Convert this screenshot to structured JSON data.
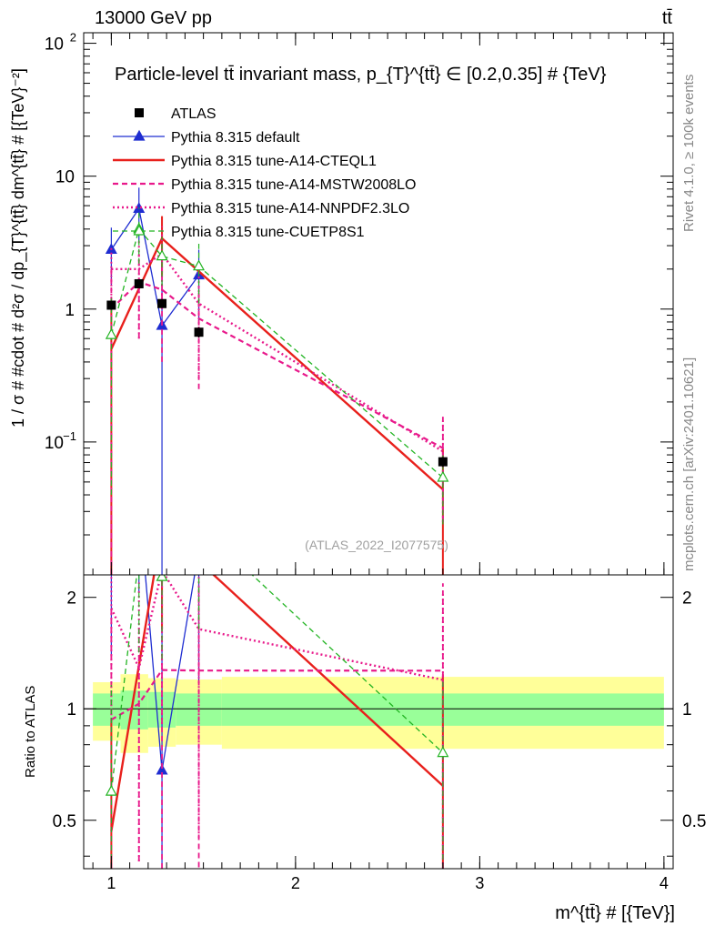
{
  "header": {
    "left": "13000 GeV pp",
    "right": "tt̄",
    "side_rivet": "Rivet 4.1.0, ≥ 100k events",
    "side_mcplots": "mcplots.cern.ch [arXiv:2401.10621]"
  },
  "colors": {
    "atlas": "#000000",
    "default": "#1f2dd1",
    "cteql1": "#e8201c",
    "mstw": "#e8198b",
    "nnpdf": "#e8198b",
    "cuetp": "#22b422",
    "band_stat": "#99ff99",
    "band_total": "#ffff99"
  },
  "chart_data": {
    "type": "line",
    "title": "Particle-level tt̄ invariant mass, p_{T}^{tt̄} ∈ [0.2,0.35] # {TeV}",
    "xlabel": "m^{tt̄} # [{TeV}]",
    "ylabel": "1 / σ # #cdot # d²σ / dp_{T}^{tt̄} dm^{tt̄} # [{TeV}⁻²]",
    "ratio_ylabel": "Ratio to ATLAS",
    "watermark": "(ATLAS_2022_I2077575)",
    "xlim": [
      0.85,
      4.05
    ],
    "ylim": [
      0.01,
      120
    ],
    "ratio_ylim": [
      0.37,
      2.3
    ],
    "yscale": "log",
    "x_ticks": [
      "1",
      "2",
      "3",
      "4"
    ],
    "y_ticks": [
      {
        "value": 100,
        "label": "10",
        "sup": "2"
      },
      {
        "value": 10,
        "label": "10",
        "sup": ""
      },
      {
        "value": 1,
        "label": "1",
        "sup": ""
      },
      {
        "value": 0.1,
        "label": "10",
        "sup": "−1"
      }
    ],
    "ratio_ticks": [
      "0.5",
      "1",
      "2"
    ],
    "legend": [
      {
        "key": "atlas",
        "label": "ATLAS"
      },
      {
        "key": "default",
        "label": "Pythia 8.315 default"
      },
      {
        "key": "cteql1",
        "label": "Pythia 8.315 tune-A14-CTEQL1"
      },
      {
        "key": "mstw",
        "label": "Pythia 8.315 tune-A14-MSTW2008LO"
      },
      {
        "key": "nnpdf",
        "label": "Pythia 8.315 tune-A14-NNPDF2.3LO"
      },
      {
        "key": "cuetp",
        "label": "Pythia 8.315 tune-CUETP8S1"
      }
    ],
    "data": {
      "name": "ATLAS",
      "x": [
        1.0,
        1.15,
        1.275,
        1.475,
        2.8
      ],
      "y": [
        1.07,
        1.55,
        1.1,
        0.67,
        0.071
      ],
      "yerr": [
        0.07,
        0.08,
        0.07,
        0.06,
        0.006
      ]
    },
    "series": [
      {
        "key": "default",
        "name": "Pythia 8.315 default",
        "style": "solid",
        "marker": "triangle",
        "x": [
          1.0,
          1.15,
          1.275,
          1.475
        ],
        "y": [
          2.8,
          5.7,
          0.75,
          1.8
        ],
        "yerr": [
          1.3,
          2.5,
          1.5,
          1.0
        ]
      },
      {
        "key": "cteql1",
        "name": "Pythia 8.315 tune-A14-CTEQL1",
        "style": "solid",
        "marker": "none",
        "x": [
          1.0,
          1.275,
          2.8
        ],
        "y": [
          0.5,
          3.4,
          0.044
        ],
        "yerr": [
          0.5,
          1.6,
          0.044
        ]
      },
      {
        "key": "mstw",
        "name": "Pythia 8.315 tune-A14-MSTW2008LO",
        "style": "dashed",
        "marker": "none",
        "x": [
          1.0,
          1.15,
          1.275,
          1.475,
          2.8
        ],
        "y": [
          1.0,
          1.6,
          1.4,
          0.85,
          0.09
        ],
        "yerr": [
          1.0,
          1.0,
          1.0,
          0.6,
          0.065
        ]
      },
      {
        "key": "nnpdf",
        "name": "Pythia 8.315 tune-A14-NNPDF2.3LO",
        "style": "dotted",
        "marker": "none",
        "x": [
          1.0,
          1.15,
          1.275,
          1.475,
          2.8
        ],
        "y": [
          2.0,
          2.0,
          2.6,
          1.1,
          0.085
        ],
        "yerr": [
          1.0,
          1.4,
          1.6,
          0.8,
          0.06
        ]
      },
      {
        "key": "cuetp",
        "name": "Pythia 8.315 tune-CUETP8S1",
        "style": "dashed",
        "marker": "open-triangle",
        "x": [
          1.0,
          1.15,
          1.275,
          1.475,
          2.8
        ],
        "y": [
          0.64,
          4.0,
          2.5,
          2.1,
          0.054
        ],
        "yerr": [
          0.6,
          1.8,
          1.0,
          1.0,
          0.03
        ]
      }
    ],
    "ratio_bands": [
      {
        "x0": 0.9,
        "x1": 1.05,
        "stat": [
          0.9,
          1.1
        ],
        "total": [
          0.82,
          1.18
        ]
      },
      {
        "x0": 1.05,
        "x1": 1.2,
        "stat": [
          0.88,
          1.12
        ],
        "total": [
          0.76,
          1.24
        ]
      },
      {
        "x0": 1.2,
        "x1": 1.35,
        "stat": [
          0.89,
          1.11
        ],
        "total": [
          0.79,
          1.21
        ]
      },
      {
        "x0": 1.35,
        "x1": 1.6,
        "stat": [
          0.9,
          1.1
        ],
        "total": [
          0.8,
          1.2
        ]
      },
      {
        "x0": 1.6,
        "x1": 4.0,
        "stat": [
          0.9,
          1.1
        ],
        "total": [
          0.78,
          1.22
        ]
      }
    ]
  }
}
